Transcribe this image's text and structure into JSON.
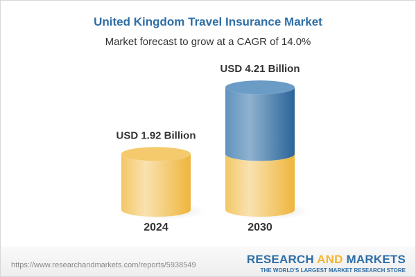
{
  "title": "United Kingdom Travel Insurance Market",
  "subtitle": "Market forecast to grow at a CAGR of 14.0%",
  "chart_data": {
    "type": "bar",
    "style": "3d-cylinder",
    "categories": [
      "2024",
      "2030"
    ],
    "values": [
      1.92,
      4.21
    ],
    "unit": "USD Billion",
    "data_labels": [
      "USD 1.92 Billion",
      "USD 4.21 Billion"
    ],
    "cagr": "14.0%",
    "colors": {
      "base": "#f2c45a",
      "growth": "#3f79ad"
    },
    "grid": false,
    "legend": "none"
  },
  "footer": {
    "url": "https://www.researchandmarkets.com/reports/5938549",
    "logo_part1": "RESEARCH ",
    "logo_part2": "AND",
    "logo_part3": " MARKETS",
    "logo_tagline": "THE WORLD'S LARGEST MARKET RESEARCH STORE"
  }
}
